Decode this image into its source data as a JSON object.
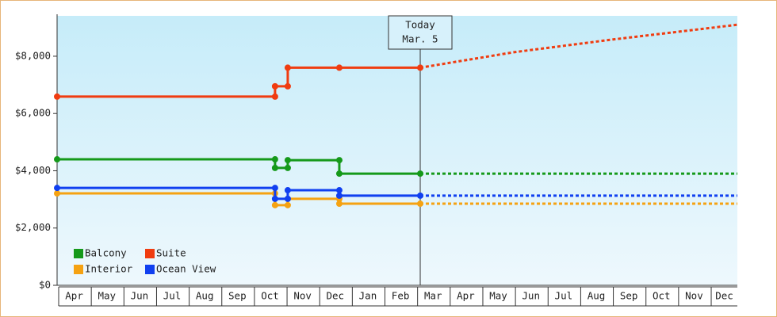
{
  "chart_data": {
    "type": "line",
    "categories": [
      "Apr",
      "May",
      "Jun",
      "Jul",
      "Aug",
      "Sep",
      "Oct",
      "Nov",
      "Dec",
      "Jan",
      "Feb",
      "Mar",
      "Apr",
      "May",
      "Jun",
      "Jul",
      "Aug",
      "Sep",
      "Oct",
      "Nov",
      "Dec"
    ],
    "xlim": [
      0,
      20.85
    ],
    "ylim": [
      0,
      9410
    ],
    "yticks": [
      {
        "value": 0,
        "label": "$0"
      },
      {
        "value": 2000,
        "label": "$2,000"
      },
      {
        "value": 4000,
        "label": "$4,000"
      },
      {
        "value": 6000,
        "label": "$6,000"
      },
      {
        "value": 8000,
        "label": "$8,000"
      }
    ],
    "annotation": {
      "lines": [
        "Today",
        "Mar. 5"
      ],
      "x": 11.13
    },
    "legend": "bottom-left",
    "series": [
      {
        "name": "Balcony",
        "color": "#15991a",
        "x": [
          0,
          6.68,
          6.68,
          7.07,
          7.07,
          8.65,
          8.65,
          11.13
        ],
        "values": [
          4400,
          4400,
          4100,
          4100,
          4370,
          4370,
          3900,
          3900
        ],
        "forecast": {
          "x": [
            11.13,
            20.85
          ],
          "values": [
            3900,
            3900
          ]
        }
      },
      {
        "name": "Suite",
        "color": "#f03c10",
        "x": [
          0,
          6.68,
          6.68,
          7.07,
          7.07,
          8.65,
          11.13
        ],
        "values": [
          6590,
          6590,
          6950,
          6950,
          7600,
          7600,
          7600
        ],
        "forecast": {
          "x": [
            11.13,
            14,
            17,
            20.85
          ],
          "values": [
            7600,
            8140,
            8580,
            9100
          ]
        }
      },
      {
        "name": "Interior",
        "color": "#f5a212",
        "x": [
          0,
          6.68,
          6.68,
          7.07,
          7.07,
          8.65,
          8.65,
          11.13
        ],
        "values": [
          3210,
          3210,
          2800,
          2800,
          3020,
          3020,
          2850,
          2850
        ],
        "forecast": {
          "x": [
            11.13,
            20.85
          ],
          "values": [
            2850,
            2850
          ]
        }
      },
      {
        "name": "Ocean View",
        "color": "#1040f0",
        "x": [
          0,
          6.68,
          6.68,
          7.07,
          7.07,
          8.65,
          8.65,
          11.13
        ],
        "values": [
          3400,
          3400,
          3020,
          3020,
          3320,
          3320,
          3130,
          3130
        ],
        "forecast": {
          "x": [
            11.13,
            20.85
          ],
          "values": [
            3130,
            3130
          ]
        }
      }
    ]
  }
}
